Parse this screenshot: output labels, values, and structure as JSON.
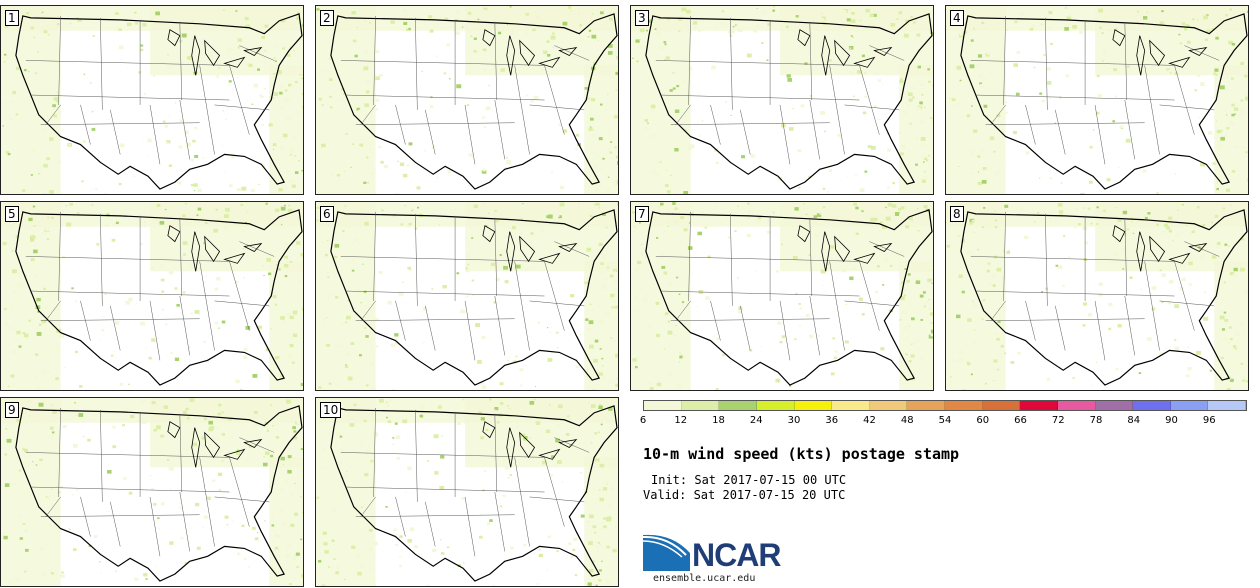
{
  "panels": [
    {
      "label": "1"
    },
    {
      "label": "2"
    },
    {
      "label": "3"
    },
    {
      "label": "4"
    },
    {
      "label": "5"
    },
    {
      "label": "6"
    },
    {
      "label": "7"
    },
    {
      "label": "8"
    },
    {
      "label": "9"
    },
    {
      "label": "10"
    }
  ],
  "colorbar": {
    "colors": [
      "#f3f8d8",
      "#dcefa9",
      "#a7d26e",
      "#d6ef2a",
      "#f5f10c",
      "#f8e98a",
      "#f0c97a",
      "#e8a35a",
      "#e28845",
      "#d87039",
      "#e0083a",
      "#e75aa0",
      "#a06fa8",
      "#6f70ef",
      "#8ba0f2",
      "#b6c8f6"
    ],
    "ticks": [
      "6",
      "12",
      "18",
      "24",
      "30",
      "36",
      "42",
      "48",
      "54",
      "60",
      "66",
      "72",
      "78",
      "84",
      "90",
      "96"
    ]
  },
  "title": "10-m wind speed (kts) postage stamp",
  "init": "Init: Sat 2017-07-15 00 UTC",
  "valid": "Valid: Sat 2017-07-15 20 UTC",
  "logo": {
    "text": "NCAR",
    "color": "#1f3e78",
    "accent": "#1a6fb5"
  },
  "site": "ensemble.ucar.edu"
}
